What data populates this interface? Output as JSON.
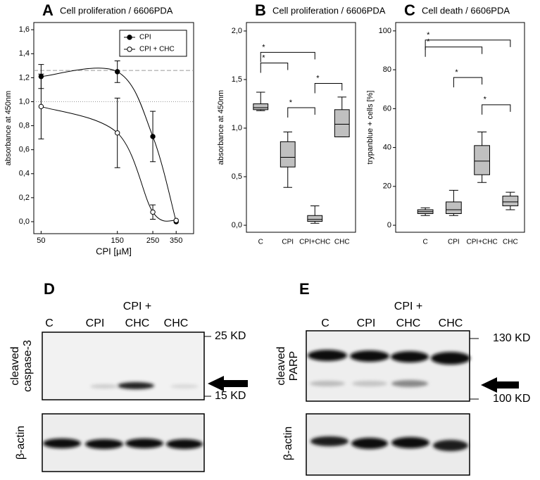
{
  "chart_data": [
    {
      "panel": "A",
      "type": "line",
      "title": "Cell proliferation / 6606PDA",
      "ylabel": "absorbance at 450nm",
      "xlabel": "CPI [µM]",
      "x": [
        50,
        150,
        250,
        350
      ],
      "xscale": "log",
      "xlim": [
        45,
        450
      ],
      "xticks": [
        50,
        150,
        250,
        350
      ],
      "ylim": [
        -0.1,
        1.66
      ],
      "yticks": [
        {
          "value": 0,
          "label": "0,0"
        },
        {
          "value": 0.2,
          "label": "0,2"
        },
        {
          "value": 0.4,
          "label": "0,4"
        },
        {
          "value": 0.6,
          "label": "0,6"
        },
        {
          "value": 0.8,
          "label": "0,8"
        },
        {
          "value": 1.0,
          "label": "1,0"
        },
        {
          "value": 1.2,
          "label": "1,2"
        },
        {
          "value": 1.4,
          "label": "1,4"
        },
        {
          "value": 1.6,
          "label": "1,6"
        }
      ],
      "series": [
        {
          "name": "CPI",
          "color": "#000000",
          "marker_fill": "#000000",
          "values": [
            1.21,
            1.25,
            0.71,
            0.0
          ],
          "errors": [
            0.1,
            0.09,
            0.21,
            0.0
          ]
        },
        {
          "name": "CPI + CHC",
          "color": "#000000",
          "marker_fill": "#ffffff",
          "values": [
            0.96,
            0.74,
            0.08,
            0.01
          ],
          "errors": [
            0.27,
            0.29,
            0.06,
            0.0
          ]
        }
      ],
      "reference_lines": [
        {
          "value": 1.26,
          "style": "dashed",
          "color": "#999999"
        },
        {
          "value": 1.0,
          "style": "dotted",
          "color": "#999999"
        }
      ],
      "legend": "top-right"
    },
    {
      "panel": "B",
      "type": "box",
      "title": "Cell proliferation / 6606PDA",
      "ylabel": "absorbance at 450nm",
      "categories": [
        "C",
        "CPI",
        "CPI+CHC",
        "CHC"
      ],
      "min": [
        1.18,
        0.39,
        0.02,
        0.91
      ],
      "q1": [
        1.19,
        0.6,
        0.04,
        0.91
      ],
      "median": [
        1.21,
        0.7,
        0.06,
        1.04
      ],
      "q3": [
        1.25,
        0.86,
        0.1,
        1.19
      ],
      "max": [
        1.37,
        0.96,
        0.2,
        1.32
      ],
      "color": "#c0c0c0",
      "ylim": [
        -0.072,
        2.087
      ],
      "yticks": [
        {
          "value": 0,
          "label": "0,0"
        },
        {
          "value": 0.5,
          "label": "0,5"
        },
        {
          "value": 1.0,
          "label": "1,0"
        },
        {
          "value": 1.5,
          "label": "1,5"
        },
        {
          "value": 2.0,
          "label": "2,0"
        }
      ],
      "brackets": [
        {
          "between": [
            "C",
            "CPI+CHC"
          ],
          "y": 1.78,
          "label": "*"
        },
        {
          "between": [
            "C",
            "CPI"
          ],
          "y": 1.67,
          "label": "*"
        },
        {
          "between": [
            "CPI+CHC",
            "CHC"
          ],
          "y": 1.46,
          "label": "*"
        },
        {
          "between": [
            "CPI",
            "CPI+CHC"
          ],
          "y": 1.21,
          "label": "*"
        }
      ]
    },
    {
      "panel": "C",
      "type": "box",
      "title": "Cell death / 6606PDA",
      "ylabel": "trypanblue + cells [%]",
      "categories": [
        "C",
        "CPI",
        "CPI+CHC",
        "CHC"
      ],
      "min": [
        5,
        5,
        22,
        8
      ],
      "q1": [
        6,
        6,
        26,
        10
      ],
      "median": [
        7,
        8,
        33,
        12
      ],
      "q3": [
        8,
        12,
        41,
        15
      ],
      "max": [
        9,
        18,
        48,
        17
      ],
      "color": "#c0c0c0",
      "ylim": [
        -3.6,
        104.3
      ],
      "yticks": [
        0,
        20,
        40,
        60,
        80,
        100
      ],
      "brackets": [
        {
          "between": [
            "C",
            "CHC"
          ],
          "y": 95.3,
          "label": "*"
        },
        {
          "between": [
            "C",
            "CPI+CHC"
          ],
          "y": 91.7,
          "label": "*"
        },
        {
          "between": [
            "CPI",
            "CPI+CHC"
          ],
          "y": 76,
          "label": "*"
        },
        {
          "between": [
            "CPI+CHC",
            "CHC"
          ],
          "y": 62,
          "label": "*"
        }
      ]
    }
  ],
  "blots": [
    {
      "panel": "D",
      "lanes": [
        "C",
        "CPI",
        [
          "CPI +",
          "CHC"
        ],
        "CHC"
      ],
      "target": [
        "cleaved",
        "caspase-3"
      ],
      "markers": [
        "25 KD",
        "15 KD"
      ],
      "loading": "β-actin"
    },
    {
      "panel": "E",
      "lanes": [
        "C",
        "CPI",
        [
          "CPI +",
          "CHC"
        ],
        "CHC"
      ],
      "target": [
        "cleaved",
        "PARP"
      ],
      "markers": [
        "130 KD",
        "100 KD"
      ],
      "loading": "β-actin"
    }
  ]
}
